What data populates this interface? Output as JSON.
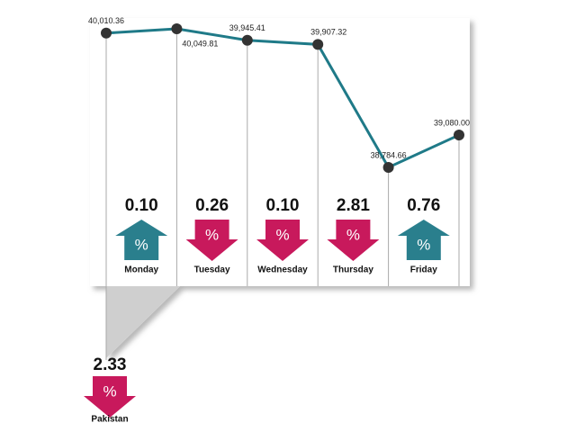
{
  "chart_data": {
    "type": "line",
    "color": "#1f7a88",
    "point_color": "#333333",
    "categories": [
      null,
      null,
      null,
      null,
      null,
      null
    ],
    "values": [
      40010.36,
      40049.81,
      39945.41,
      39907.32,
      38784.66,
      39080.0
    ],
    "value_labels": [
      "40,010.36",
      "40,049.81",
      "39,945.41",
      "39,907.32",
      "38,784.66",
      "39,080.00"
    ]
  },
  "symbol": "%",
  "up_color": "#2a7f8d",
  "down_color": "#c8195c",
  "days": [
    {
      "name": "Monday",
      "change": {
        "value": 0.1,
        "label": "0.10"
      },
      "direction": "up"
    },
    {
      "name": "Tuesday",
      "change": {
        "value": 0.26,
        "label": "0.26"
      },
      "direction": "down"
    },
    {
      "name": "Wednesday",
      "change": {
        "value": 0.1,
        "label": "0.10"
      },
      "direction": "down"
    },
    {
      "name": "Thursday",
      "change": {
        "value": 2.81,
        "label": "2.81"
      },
      "direction": "down"
    },
    {
      "name": "Friday",
      "change": {
        "value": 0.76,
        "label": "0.76"
      },
      "direction": "up"
    }
  ],
  "pakistan": {
    "name": "Pakistan",
    "change": {
      "value": 2.33,
      "label": "2.33"
    },
    "direction": "down"
  }
}
